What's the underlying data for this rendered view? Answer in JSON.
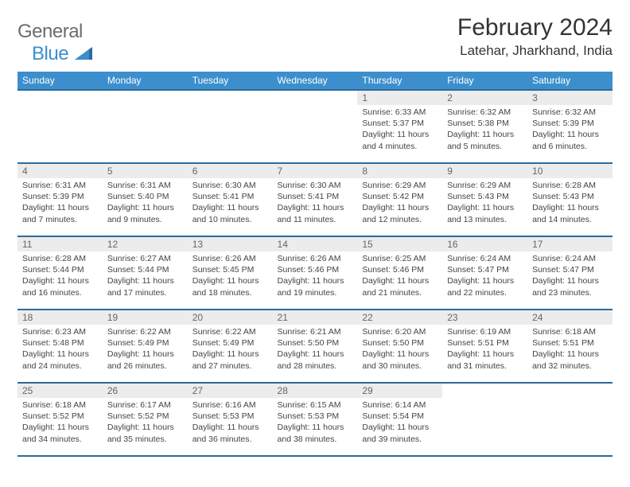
{
  "logo": {
    "text1": "General",
    "text2": "Blue"
  },
  "title": "February 2024",
  "location": "Latehar, Jharkhand, India",
  "headers": [
    "Sunday",
    "Monday",
    "Tuesday",
    "Wednesday",
    "Thursday",
    "Friday",
    "Saturday"
  ],
  "colors": {
    "header_bg": "#3c8fcc",
    "header_border": "#2b6b9e",
    "daynum_bg": "#ececec",
    "text_main": "#333333",
    "text_muted": "#666666",
    "detail_text": "#444444",
    "logo_gray": "#6c6c6c",
    "logo_blue": "#3c8fcc"
  },
  "typography": {
    "title_fontsize": 30,
    "location_fontsize": 17,
    "header_fontsize": 12,
    "daynum_fontsize": 12,
    "detail_fontsize": 10.5
  },
  "weeks": [
    [
      null,
      null,
      null,
      null,
      {
        "d": "1",
        "sr": "Sunrise: 6:33 AM",
        "ss": "Sunset: 5:37 PM",
        "dl": "Daylight: 11 hours and 4 minutes."
      },
      {
        "d": "2",
        "sr": "Sunrise: 6:32 AM",
        "ss": "Sunset: 5:38 PM",
        "dl": "Daylight: 11 hours and 5 minutes."
      },
      {
        "d": "3",
        "sr": "Sunrise: 6:32 AM",
        "ss": "Sunset: 5:39 PM",
        "dl": "Daylight: 11 hours and 6 minutes."
      }
    ],
    [
      {
        "d": "4",
        "sr": "Sunrise: 6:31 AM",
        "ss": "Sunset: 5:39 PM",
        "dl": "Daylight: 11 hours and 7 minutes."
      },
      {
        "d": "5",
        "sr": "Sunrise: 6:31 AM",
        "ss": "Sunset: 5:40 PM",
        "dl": "Daylight: 11 hours and 9 minutes."
      },
      {
        "d": "6",
        "sr": "Sunrise: 6:30 AM",
        "ss": "Sunset: 5:41 PM",
        "dl": "Daylight: 11 hours and 10 minutes."
      },
      {
        "d": "7",
        "sr": "Sunrise: 6:30 AM",
        "ss": "Sunset: 5:41 PM",
        "dl": "Daylight: 11 hours and 11 minutes."
      },
      {
        "d": "8",
        "sr": "Sunrise: 6:29 AM",
        "ss": "Sunset: 5:42 PM",
        "dl": "Daylight: 11 hours and 12 minutes."
      },
      {
        "d": "9",
        "sr": "Sunrise: 6:29 AM",
        "ss": "Sunset: 5:43 PM",
        "dl": "Daylight: 11 hours and 13 minutes."
      },
      {
        "d": "10",
        "sr": "Sunrise: 6:28 AM",
        "ss": "Sunset: 5:43 PM",
        "dl": "Daylight: 11 hours and 14 minutes."
      }
    ],
    [
      {
        "d": "11",
        "sr": "Sunrise: 6:28 AM",
        "ss": "Sunset: 5:44 PM",
        "dl": "Daylight: 11 hours and 16 minutes."
      },
      {
        "d": "12",
        "sr": "Sunrise: 6:27 AM",
        "ss": "Sunset: 5:44 PM",
        "dl": "Daylight: 11 hours and 17 minutes."
      },
      {
        "d": "13",
        "sr": "Sunrise: 6:26 AM",
        "ss": "Sunset: 5:45 PM",
        "dl": "Daylight: 11 hours and 18 minutes."
      },
      {
        "d": "14",
        "sr": "Sunrise: 6:26 AM",
        "ss": "Sunset: 5:46 PM",
        "dl": "Daylight: 11 hours and 19 minutes."
      },
      {
        "d": "15",
        "sr": "Sunrise: 6:25 AM",
        "ss": "Sunset: 5:46 PM",
        "dl": "Daylight: 11 hours and 21 minutes."
      },
      {
        "d": "16",
        "sr": "Sunrise: 6:24 AM",
        "ss": "Sunset: 5:47 PM",
        "dl": "Daylight: 11 hours and 22 minutes."
      },
      {
        "d": "17",
        "sr": "Sunrise: 6:24 AM",
        "ss": "Sunset: 5:47 PM",
        "dl": "Daylight: 11 hours and 23 minutes."
      }
    ],
    [
      {
        "d": "18",
        "sr": "Sunrise: 6:23 AM",
        "ss": "Sunset: 5:48 PM",
        "dl": "Daylight: 11 hours and 24 minutes."
      },
      {
        "d": "19",
        "sr": "Sunrise: 6:22 AM",
        "ss": "Sunset: 5:49 PM",
        "dl": "Daylight: 11 hours and 26 minutes."
      },
      {
        "d": "20",
        "sr": "Sunrise: 6:22 AM",
        "ss": "Sunset: 5:49 PM",
        "dl": "Daylight: 11 hours and 27 minutes."
      },
      {
        "d": "21",
        "sr": "Sunrise: 6:21 AM",
        "ss": "Sunset: 5:50 PM",
        "dl": "Daylight: 11 hours and 28 minutes."
      },
      {
        "d": "22",
        "sr": "Sunrise: 6:20 AM",
        "ss": "Sunset: 5:50 PM",
        "dl": "Daylight: 11 hours and 30 minutes."
      },
      {
        "d": "23",
        "sr": "Sunrise: 6:19 AM",
        "ss": "Sunset: 5:51 PM",
        "dl": "Daylight: 11 hours and 31 minutes."
      },
      {
        "d": "24",
        "sr": "Sunrise: 6:18 AM",
        "ss": "Sunset: 5:51 PM",
        "dl": "Daylight: 11 hours and 32 minutes."
      }
    ],
    [
      {
        "d": "25",
        "sr": "Sunrise: 6:18 AM",
        "ss": "Sunset: 5:52 PM",
        "dl": "Daylight: 11 hours and 34 minutes."
      },
      {
        "d": "26",
        "sr": "Sunrise: 6:17 AM",
        "ss": "Sunset: 5:52 PM",
        "dl": "Daylight: 11 hours and 35 minutes."
      },
      {
        "d": "27",
        "sr": "Sunrise: 6:16 AM",
        "ss": "Sunset: 5:53 PM",
        "dl": "Daylight: 11 hours and 36 minutes."
      },
      {
        "d": "28",
        "sr": "Sunrise: 6:15 AM",
        "ss": "Sunset: 5:53 PM",
        "dl": "Daylight: 11 hours and 38 minutes."
      },
      {
        "d": "29",
        "sr": "Sunrise: 6:14 AM",
        "ss": "Sunset: 5:54 PM",
        "dl": "Daylight: 11 hours and 39 minutes."
      },
      null,
      null
    ]
  ]
}
